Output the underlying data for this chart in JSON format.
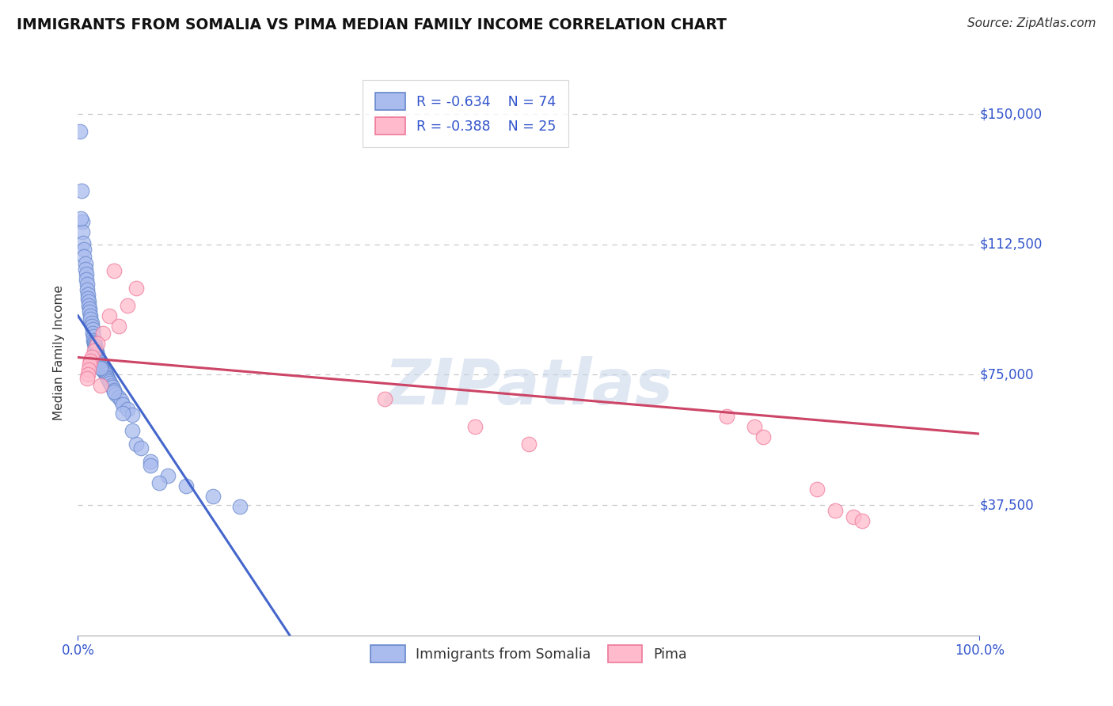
{
  "title": "IMMIGRANTS FROM SOMALIA VS PIMA MEDIAN FAMILY INCOME CORRELATION CHART",
  "source_text": "Source: ZipAtlas.com",
  "ylabel": "Median Family Income",
  "xlim": [
    0.0,
    1.0
  ],
  "ylim": [
    0,
    162500
  ],
  "yticks": [
    0,
    37500,
    75000,
    112500,
    150000
  ],
  "ytick_labels": [
    "",
    "$37,500",
    "$75,000",
    "$112,500",
    "$150,000"
  ],
  "xtick_labels": [
    "0.0%",
    "100.0%"
  ],
  "blue_R": -0.634,
  "blue_N": 74,
  "pink_R": -0.388,
  "pink_N": 25,
  "blue_label": "Immigrants from Somalia",
  "pink_label": "Pima",
  "background_color": "#ffffff",
  "grid_color": "#c8c8c8",
  "blue_fill": "#aabbee",
  "pink_fill": "#ffbbcc",
  "blue_edge": "#6688cc",
  "pink_edge": "#ee7799",
  "blue_line_color": "#4466cc",
  "pink_line_color": "#cc4466",
  "watermark": "ZIPatlas",
  "blue_points": [
    [
      0.002,
      145000
    ],
    [
      0.004,
      128000
    ],
    [
      0.005,
      119000
    ],
    [
      0.005,
      116000
    ],
    [
      0.006,
      113000
    ],
    [
      0.007,
      111000
    ],
    [
      0.007,
      109000
    ],
    [
      0.008,
      107000
    ],
    [
      0.008,
      105500
    ],
    [
      0.009,
      104000
    ],
    [
      0.009,
      102500
    ],
    [
      0.01,
      101000
    ],
    [
      0.01,
      99500
    ],
    [
      0.011,
      98000
    ],
    [
      0.011,
      97000
    ],
    [
      0.012,
      96000
    ],
    [
      0.012,
      95000
    ],
    [
      0.013,
      94000
    ],
    [
      0.013,
      93000
    ],
    [
      0.014,
      92000
    ],
    [
      0.014,
      91000
    ],
    [
      0.015,
      90000
    ],
    [
      0.015,
      89000
    ],
    [
      0.016,
      88000
    ],
    [
      0.016,
      87000
    ],
    [
      0.017,
      86000
    ],
    [
      0.017,
      85000
    ],
    [
      0.018,
      84500
    ],
    [
      0.018,
      84000
    ],
    [
      0.019,
      83500
    ],
    [
      0.019,
      83000
    ],
    [
      0.02,
      82500
    ],
    [
      0.02,
      82000
    ],
    [
      0.021,
      81500
    ],
    [
      0.021,
      81000
    ],
    [
      0.022,
      80500
    ],
    [
      0.022,
      80000
    ],
    [
      0.023,
      79500
    ],
    [
      0.024,
      79000
    ],
    [
      0.025,
      78500
    ],
    [
      0.025,
      78000
    ],
    [
      0.026,
      77500
    ],
    [
      0.027,
      77000
    ],
    [
      0.028,
      76500
    ],
    [
      0.029,
      76000
    ],
    [
      0.03,
      75500
    ],
    [
      0.031,
      75000
    ],
    [
      0.032,
      74500
    ],
    [
      0.033,
      74000
    ],
    [
      0.034,
      73500
    ],
    [
      0.035,
      73000
    ],
    [
      0.036,
      72500
    ],
    [
      0.037,
      72000
    ],
    [
      0.038,
      71500
    ],
    [
      0.04,
      70500
    ],
    [
      0.042,
      69500
    ],
    [
      0.045,
      68500
    ],
    [
      0.048,
      67500
    ],
    [
      0.05,
      66500
    ],
    [
      0.055,
      65000
    ],
    [
      0.06,
      63500
    ],
    [
      0.003,
      120000
    ],
    [
      0.065,
      55000
    ],
    [
      0.08,
      50000
    ],
    [
      0.1,
      46000
    ],
    [
      0.12,
      43000
    ],
    [
      0.15,
      40000
    ],
    [
      0.18,
      37000
    ],
    [
      0.025,
      77000
    ],
    [
      0.04,
      70000
    ],
    [
      0.05,
      64000
    ],
    [
      0.06,
      59000
    ],
    [
      0.07,
      54000
    ],
    [
      0.08,
      49000
    ],
    [
      0.09,
      44000
    ]
  ],
  "pink_points": [
    [
      0.04,
      105000
    ],
    [
      0.065,
      100000
    ],
    [
      0.055,
      95000
    ],
    [
      0.035,
      92000
    ],
    [
      0.045,
      89000
    ],
    [
      0.028,
      87000
    ],
    [
      0.022,
      84000
    ],
    [
      0.018,
      82000
    ],
    [
      0.015,
      80000
    ],
    [
      0.014,
      79000
    ],
    [
      0.013,
      78000
    ],
    [
      0.012,
      76500
    ],
    [
      0.011,
      75000
    ],
    [
      0.01,
      74000
    ],
    [
      0.025,
      72000
    ],
    [
      0.34,
      68000
    ],
    [
      0.44,
      60000
    ],
    [
      0.5,
      55000
    ],
    [
      0.72,
      63000
    ],
    [
      0.75,
      60000
    ],
    [
      0.76,
      57000
    ],
    [
      0.82,
      42000
    ],
    [
      0.84,
      36000
    ],
    [
      0.86,
      34000
    ],
    [
      0.87,
      33000
    ]
  ],
  "blue_trendline_x": [
    0.0,
    0.235
  ],
  "blue_trendline_y": [
    92000,
    0
  ],
  "pink_trendline_x": [
    0.0,
    1.0
  ],
  "pink_trendline_y": [
    80000,
    58000
  ]
}
